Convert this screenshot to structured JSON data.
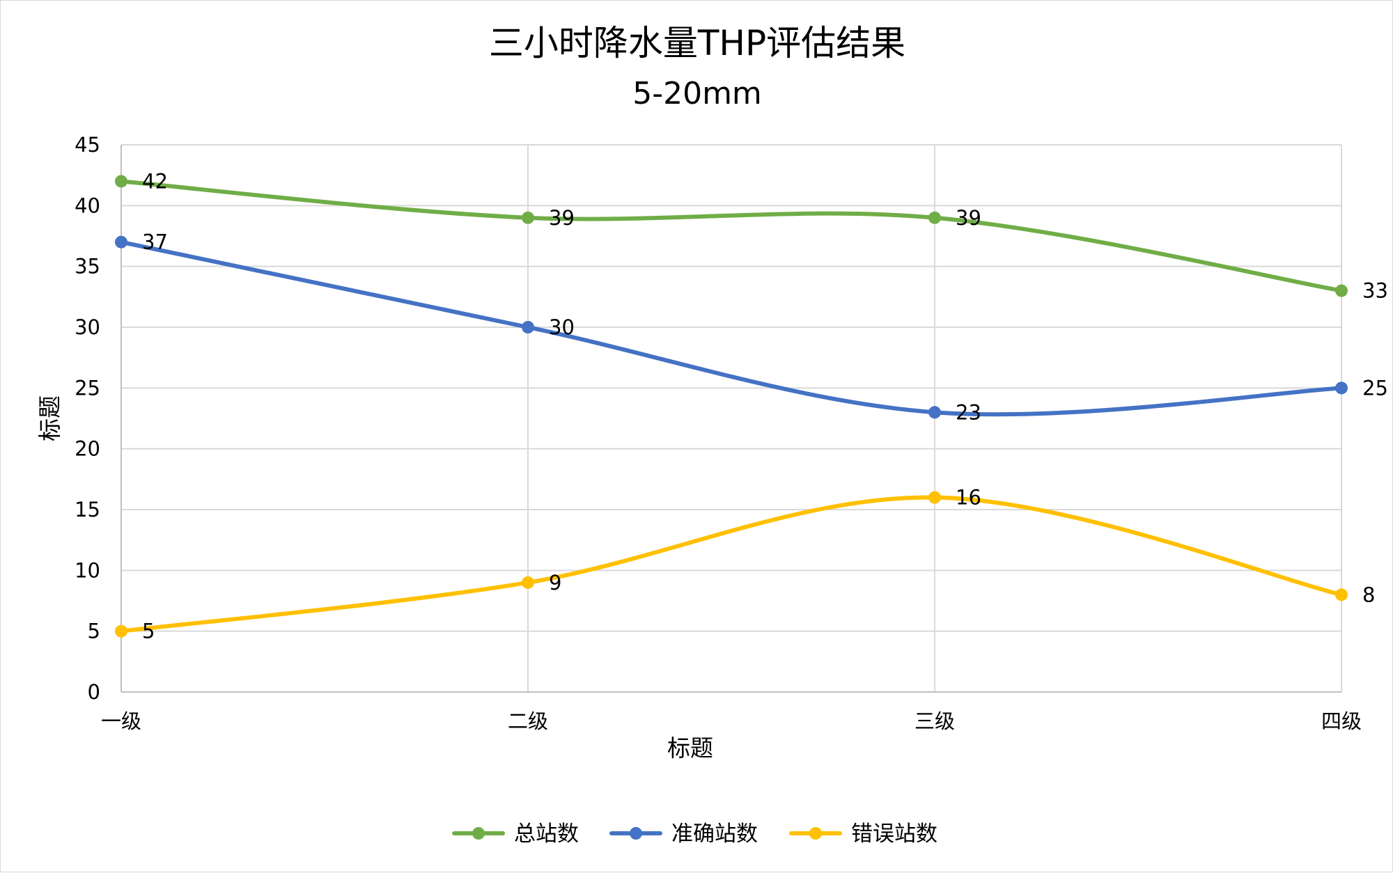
{
  "chart_data": {
    "type": "line",
    "title": "三小时降水量THP评估结果",
    "subtitle": "5-20mm",
    "xlabel": "标题",
    "ylabel": "标题",
    "categories": [
      "一级",
      "二级",
      "三级",
      "四级"
    ],
    "ylim": [
      0,
      45
    ],
    "yticks": [
      0,
      5,
      10,
      15,
      20,
      25,
      30,
      35,
      40,
      45
    ],
    "grid": true,
    "smooth": true,
    "legend_position": "bottom",
    "series": [
      {
        "name": "总站数",
        "color": "#70ad47",
        "values": [
          42,
          39,
          39,
          33
        ]
      },
      {
        "name": "准确站数",
        "color": "#4472c4",
        "values": [
          37,
          30,
          23,
          25
        ]
      },
      {
        "name": "错误站数",
        "color": "#ffc000",
        "values": [
          5,
          9,
          16,
          8
        ]
      }
    ]
  }
}
